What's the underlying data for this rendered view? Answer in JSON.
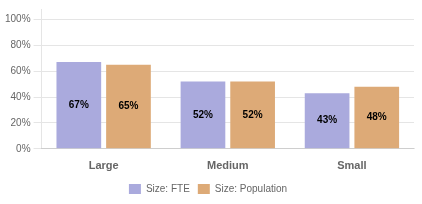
{
  "chart_data": {
    "type": "bar",
    "categories": [
      "Large",
      "Medium",
      "Small"
    ],
    "series": [
      {
        "name": "Size: FTE",
        "color": "#aaaadd",
        "values": [
          0.67,
          0.52,
          0.43
        ],
        "value_labels": [
          "67%",
          "52%",
          "43%"
        ]
      },
      {
        "name": "Size: Population",
        "color": "#ddaa77",
        "values": [
          0.65,
          0.52,
          0.48
        ],
        "value_labels": [
          "65%",
          "52%",
          "48%"
        ]
      }
    ],
    "ylim": [
      0,
      1.08
    ],
    "yticks": [
      {
        "value": 0.0,
        "label": "0%"
      },
      {
        "value": 0.2,
        "label": "20%"
      },
      {
        "value": 0.4,
        "label": "40%"
      },
      {
        "value": 0.6,
        "label": "60%"
      },
      {
        "value": 0.8,
        "label": "80%"
      },
      {
        "value": 1.0,
        "label": "100%"
      }
    ],
    "grid": true,
    "legend": "bottom",
    "data_labels": true
  }
}
